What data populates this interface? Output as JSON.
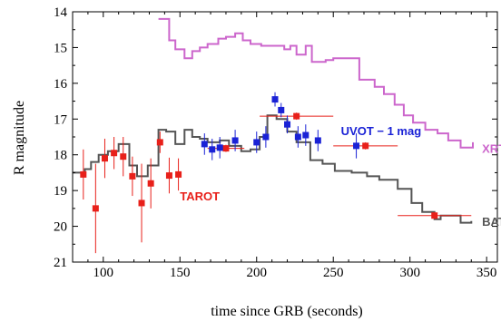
{
  "chart_data": {
    "type": "scatter",
    "xlabel": "time since GRB (seconds)",
    "ylabel": "R magnitude",
    "xlim": [
      80,
      357
    ],
    "ylim": [
      14,
      21
    ],
    "y_inverted": true,
    "xticks": [
      100,
      150,
      200,
      250,
      300,
      350
    ],
    "yticks": [
      14,
      15,
      16,
      17,
      18,
      19,
      20,
      21
    ],
    "grid": false,
    "annotations": [
      {
        "text": "TAROT",
        "x": 150,
        "y": 19.28,
        "color": "#e8201a"
      },
      {
        "text": "UVOT − 1 mag",
        "x": 255,
        "y": 17.45,
        "color": "#1a22d6"
      },
      {
        "text": "XRT",
        "x": 347,
        "y": 17.95,
        "color": "#cc66cc"
      },
      {
        "text": "BAT",
        "x": 347,
        "y": 19.98,
        "color": "#555555"
      }
    ],
    "series": [
      {
        "name": "TAROT",
        "kind": "points",
        "marker": "square",
        "color": "#e8201a",
        "points": [
          {
            "x": 87,
            "y": 18.55,
            "yerr": 0.7,
            "xerr": 0
          },
          {
            "x": 95,
            "y": 19.5,
            "yerr": 1.25,
            "xerr": 0
          },
          {
            "x": 101,
            "y": 18.1,
            "yerr": 0.55,
            "xerr": 0
          },
          {
            "x": 107,
            "y": 17.95,
            "yerr": 0.45,
            "xerr": 0
          },
          {
            "x": 113,
            "y": 18.05,
            "yerr": 0.55,
            "xerr": 0
          },
          {
            "x": 119,
            "y": 18.6,
            "yerr": 0.55,
            "xerr": 0
          },
          {
            "x": 125,
            "y": 19.35,
            "yerr": 1.1,
            "xerr": 0
          },
          {
            "x": 131,
            "y": 18.8,
            "yerr": 0.7,
            "xerr": 0
          },
          {
            "x": 137,
            "y": 17.65,
            "yerr": 0.3,
            "xerr": 0
          },
          {
            "x": 143,
            "y": 18.58,
            "yerr": 0.5,
            "xerr": 0
          },
          {
            "x": 149,
            "y": 18.55,
            "yerr": 0.45,
            "xerr": 0
          },
          {
            "x": 180,
            "y": 17.82,
            "yerr": 0.1,
            "xerr": 12
          },
          {
            "x": 226,
            "y": 16.92,
            "yerr": 0.1,
            "xerr": 24
          },
          {
            "x": 271,
            "y": 17.75,
            "yerr": 0.1,
            "xerr": 21
          },
          {
            "x": 316,
            "y": 19.7,
            "yerr": 0.1,
            "xerr": 24
          }
        ]
      },
      {
        "name": "UVOT − 1 mag",
        "kind": "points",
        "marker": "square",
        "color": "#1a22d6",
        "points": [
          {
            "x": 166,
            "y": 17.7,
            "yerr": 0.3,
            "xerr": 0
          },
          {
            "x": 171,
            "y": 17.85,
            "yerr": 0.3,
            "xerr": 0
          },
          {
            "x": 176,
            "y": 17.8,
            "yerr": 0.3,
            "xerr": 0
          },
          {
            "x": 186,
            "y": 17.6,
            "yerr": 0.3,
            "xerr": 0
          },
          {
            "x": 200,
            "y": 17.65,
            "yerr": 0.3,
            "xerr": 0
          },
          {
            "x": 206,
            "y": 17.5,
            "yerr": 0.3,
            "xerr": 0
          },
          {
            "x": 212,
            "y": 16.45,
            "yerr": 0.2,
            "xerr": 0
          },
          {
            "x": 216,
            "y": 16.75,
            "yerr": 0.2,
            "xerr": 0
          },
          {
            "x": 220,
            "y": 17.15,
            "yerr": 0.25,
            "xerr": 0
          },
          {
            "x": 227,
            "y": 17.5,
            "yerr": 0.3,
            "xerr": 0
          },
          {
            "x": 232,
            "y": 17.45,
            "yerr": 0.3,
            "xerr": 0
          },
          {
            "x": 240,
            "y": 17.6,
            "yerr": 0.3,
            "xerr": 0
          },
          {
            "x": 265,
            "y": 17.75,
            "yerr": 0.35,
            "xerr": 0
          }
        ]
      },
      {
        "name": "XRT",
        "kind": "step",
        "color": "#cc66cc",
        "x": [
          136,
          143,
          147,
          153,
          158,
          163,
          168,
          175,
          180,
          186,
          191,
          196,
          203,
          210,
          218,
          222,
          226,
          232,
          236,
          245,
          250,
          255,
          267,
          277,
          283,
          290,
          296,
          302,
          310,
          318,
          325,
          333,
          341
        ],
        "y": [
          14.2,
          14.8,
          15.05,
          15.3,
          15.1,
          15.0,
          14.9,
          14.75,
          14.7,
          14.6,
          14.8,
          14.9,
          14.95,
          14.95,
          15.05,
          14.95,
          15.2,
          14.95,
          15.4,
          15.35,
          15.3,
          15.3,
          15.9,
          16.1,
          16.3,
          16.6,
          16.9,
          17.1,
          17.3,
          17.4,
          17.6,
          17.8,
          17.65
        ]
      },
      {
        "name": "BAT",
        "kind": "step",
        "color": "#555555",
        "x": [
          80,
          88,
          92,
          97,
          103,
          110,
          117,
          122,
          129,
          136,
          141,
          147,
          153,
          158,
          163,
          168,
          176,
          182,
          190,
          196,
          202,
          207,
          213,
          220,
          226,
          235,
          243,
          251,
          262,
          272,
          280,
          292,
          301,
          308,
          316,
          320,
          328,
          333,
          340
        ],
        "y": [
          18.5,
          18.4,
          18.2,
          18.0,
          17.9,
          17.7,
          18.3,
          18.6,
          18.3,
          17.3,
          17.35,
          17.7,
          17.3,
          17.5,
          17.55,
          17.65,
          17.6,
          17.75,
          17.9,
          17.85,
          17.5,
          16.9,
          17.0,
          17.35,
          17.65,
          18.15,
          18.25,
          18.45,
          18.5,
          18.6,
          18.7,
          18.95,
          19.35,
          19.6,
          19.8,
          19.7,
          19.7,
          19.9,
          19.85
        ]
      }
    ]
  }
}
